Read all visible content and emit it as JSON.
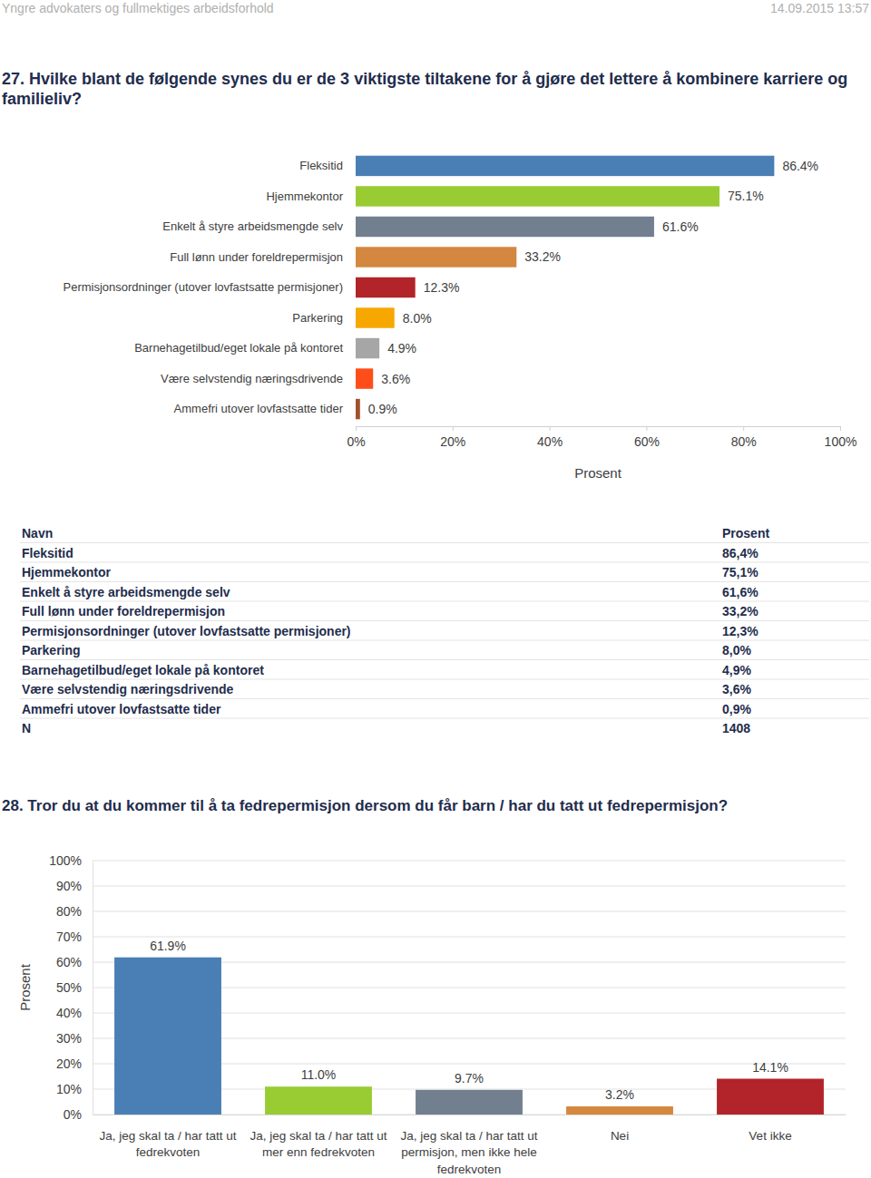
{
  "header": {
    "title": "Yngre advokaters og fullmektiges arbeidsforhold",
    "date": "14.09.2015 13:57"
  },
  "chart_data": [
    {
      "type": "bar",
      "orientation": "horizontal",
      "title": "27. Hvilke blant de følgende synes du er de 3 viktigste tiltakene for å gjøre det lettere å kombinere karriere og familieliv?",
      "x_label": "Prosent",
      "categories": [
        "Fleksitid",
        "Hjemmekontor",
        "Enkelt å styre arbeidsmengde selv",
        "Full lønn under foreldrepermisjon",
        "Permisjonsordninger (utover lovfastsatte permisjoner)",
        "Parkering",
        "Barnehagetilbud/eget lokale på kontoret",
        "Være selvstendig næringsdrivende",
        "Ammefri utover lovfastsatte tider"
      ],
      "values": [
        86.4,
        75.1,
        61.6,
        33.2,
        12.3,
        8.0,
        4.9,
        3.6,
        0.9
      ],
      "value_labels": [
        "86.4%",
        "75.1%",
        "61.6%",
        "33.2%",
        "12.3%",
        "8.0%",
        "4.9%",
        "3.6%",
        "0.9%"
      ],
      "colors": [
        "#4a7fb5",
        "#99cc33",
        "#717f8f",
        "#d4873f",
        "#b22429",
        "#f7a800",
        "#a6a6a6",
        "#ff4d1a",
        "#a0522d"
      ],
      "xlim": [
        0,
        100
      ],
      "xticks": [
        {
          "value": 0,
          "label": "0%"
        },
        {
          "value": 20,
          "label": "20%"
        },
        {
          "value": 40,
          "label": "40%"
        },
        {
          "value": 60,
          "label": "60%"
        },
        {
          "value": 80,
          "label": "80%"
        },
        {
          "value": 100,
          "label": "100%"
        }
      ],
      "grid": false,
      "data_labels": true
    },
    {
      "type": "bar",
      "title": "28. Tror du at du kommer til å ta fedrepermisjon dersom du får barn / har du tatt ut fedrepermisjon?",
      "y_label": "Prosent",
      "categories": [
        "Ja, jeg skal ta / har tatt ut fedrekvoten",
        "Ja, jeg skal ta / har tatt ut mer enn fedrekvoten",
        "Ja, jeg skal ta / har tatt ut permisjon, men ikke hele fedrekvoten",
        "Nei",
        "Vet ikke"
      ],
      "values": [
        61.9,
        11.0,
        9.7,
        3.2,
        14.1
      ],
      "value_labels": [
        "61.9%",
        "11.0%",
        "9.7%",
        "3.2%",
        "14.1%"
      ],
      "colors": [
        "#4a7fb5",
        "#99cc33",
        "#717f8f",
        "#d4873f",
        "#b22429"
      ],
      "ylim": [
        0,
        100
      ],
      "yticks": [
        {
          "value": 0,
          "label": "0%"
        },
        {
          "value": 10,
          "label": "10%"
        },
        {
          "value": 20,
          "label": "20%"
        },
        {
          "value": 30,
          "label": "30%"
        },
        {
          "value": 40,
          "label": "40%"
        },
        {
          "value": 50,
          "label": "50%"
        },
        {
          "value": 60,
          "label": "60%"
        },
        {
          "value": 70,
          "label": "70%"
        },
        {
          "value": 80,
          "label": "80%"
        },
        {
          "value": 90,
          "label": "90%"
        },
        {
          "value": 100,
          "label": "100%"
        }
      ],
      "grid": true,
      "data_labels": true
    }
  ],
  "table": {
    "columns": [
      "Navn",
      "Prosent"
    ],
    "rows": [
      [
        "Fleksitid",
        "86,4%"
      ],
      [
        "Hjemmekontor",
        "75,1%"
      ],
      [
        "Enkelt å styre arbeidsmengde selv",
        "61,6%"
      ],
      [
        "Full lønn under foreldrepermisjon",
        "33,2%"
      ],
      [
        "Permisjonsordninger (utover lovfastsatte permisjoner)",
        "12,3%"
      ],
      [
        "Parkering",
        "8,0%"
      ],
      [
        "Barnehagetilbud/eget lokale på kontoret",
        "4,9%"
      ],
      [
        "Være selvstendig næringsdrivende",
        "3,6%"
      ],
      [
        "Ammefri utover lovfastsatte tider",
        "0,9%"
      ],
      [
        "N",
        "1408"
      ]
    ]
  }
}
